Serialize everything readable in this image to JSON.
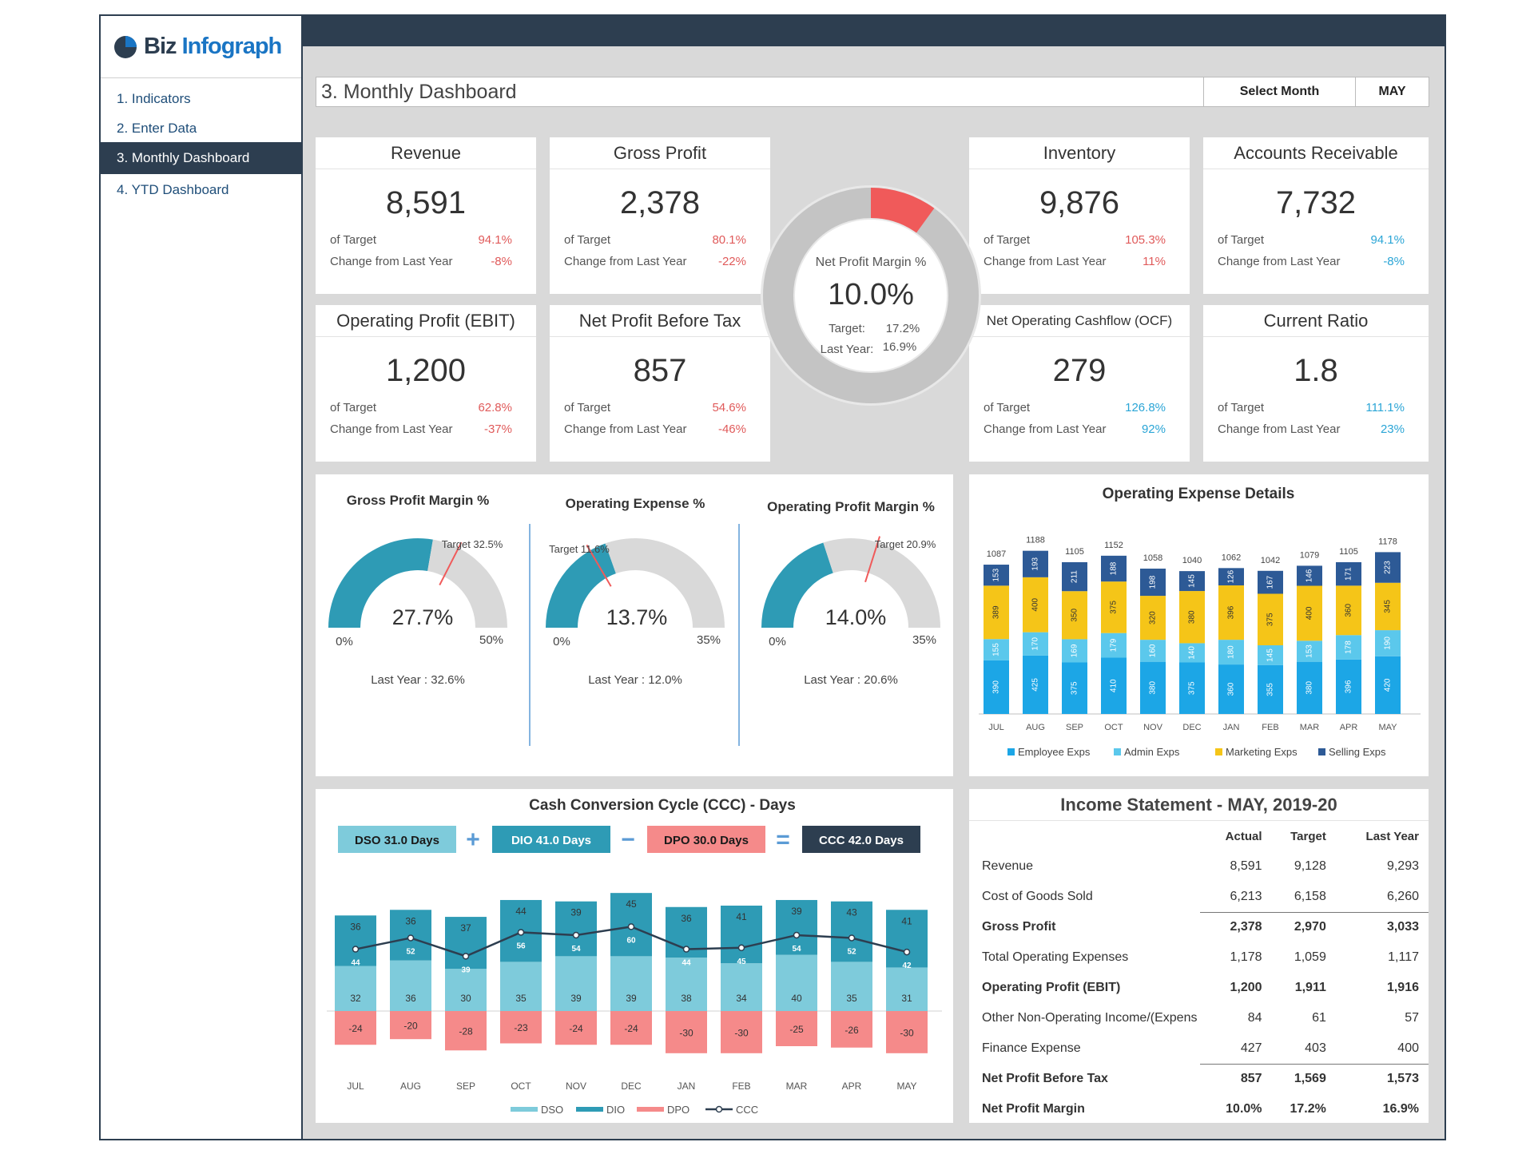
{
  "app": {
    "logo_biz": "Biz",
    "logo_info": "Infograph"
  },
  "sidebar": {
    "items": [
      {
        "label": "1. Indicators"
      },
      {
        "label": "2. Enter Data"
      },
      {
        "label": "3. Monthly Dashboard"
      },
      {
        "label": "4. YTD Dashboard"
      }
    ]
  },
  "header": {
    "title": "3. Monthly Dashboard",
    "select_label": "Select Month",
    "select_value": "MAY"
  },
  "kpis": {
    "revenue": {
      "title": "Revenue",
      "value": "8,591",
      "target_label": "of Target",
      "target": "94.1%",
      "change_label": "Change from Last Year",
      "change": "-8%"
    },
    "gross_profit": {
      "title": "Gross Profit",
      "value": "2,378",
      "target_label": "of Target",
      "target": "80.1%",
      "change_label": "Change from Last Year",
      "change": "-22%"
    },
    "inventory": {
      "title": "Inventory",
      "value": "9,876",
      "target_label": "of Target",
      "target": "105.3%",
      "change_label": "Change from Last Year",
      "change": "11%"
    },
    "ar": {
      "title": "Accounts Receivable",
      "value": "7,732",
      "target_label": "of Target",
      "target": "94.1%",
      "change_label": "Change from Last Year",
      "change": "-8%"
    },
    "ebit": {
      "title": "Operating Profit (EBIT)",
      "value": "1,200",
      "target_label": "of Target",
      "target": "62.8%",
      "change_label": "Change from Last Year",
      "change": "-37%"
    },
    "npbt": {
      "title": "Net Profit Before Tax",
      "value": "857",
      "target_label": "of Target",
      "target": "54.6%",
      "change_label": "Change from Last Year",
      "change": "-46%"
    },
    "ocf": {
      "title": "Net Operating Cashflow (OCF)",
      "value": "279",
      "target_label": "of Target",
      "target": "126.8%",
      "change_label": "Change from Last Year",
      "change": "92%"
    },
    "current_ratio": {
      "title": "Current Ratio",
      "value": "1.8",
      "target_label": "of Target",
      "target": "111.1%",
      "change_label": "Change from Last Year",
      "change": "23%"
    }
  },
  "npm_donut": {
    "label": "Net Profit Margin %",
    "value": "10.0%",
    "target_label": "Target:",
    "target": "17.2%",
    "last_year_label": "Last Year:",
    "last_year": "16.9%",
    "fraction": 0.1
  },
  "gauges": [
    {
      "title": "Gross Profit Margin %",
      "value_text": "27.7%",
      "value": 27.7,
      "max": 50,
      "max_label": "50%",
      "min_label": "0%",
      "target_text": "Target 32.5%",
      "target": 32.5,
      "last_year_text": "Last Year : 32.6%"
    },
    {
      "title": "Operating Expense %",
      "value_text": "13.7%",
      "value": 13.7,
      "max": 35,
      "max_label": "35%",
      "min_label": "0%",
      "target_text": "Target 11.6%",
      "target": 11.6,
      "last_year_text": "Last Year : 12.0%"
    },
    {
      "title": "Operating Profit Margin %",
      "value_text": "14.0%",
      "value": 14.0,
      "max": 35,
      "max_label": "35%",
      "min_label": "0%",
      "target_text": "Target 20.9%",
      "target": 20.9,
      "last_year_text": "Last Year : 20.6%"
    }
  ],
  "colors": {
    "teal": "#2e9bb5",
    "grey": "#d9d9d9",
    "red": "#f05a5a",
    "navy": "#2d3e50",
    "employee": "#1ca6e6",
    "admin": "#5bc8ec",
    "marketing": "#f5c518",
    "selling": "#2d5a96",
    "dso": "#7ecbdb",
    "dio": "#2e9bb5",
    "dpo": "#f58a8a"
  },
  "chart_data": [
    {
      "type": "bar",
      "title": "Operating Expense Details",
      "categories": [
        "JUL",
        "AUG",
        "SEP",
        "OCT",
        "NOV",
        "DEC",
        "JAN",
        "FEB",
        "MAR",
        "APR",
        "MAY"
      ],
      "series": [
        {
          "name": "Employee Exps",
          "values": [
            390,
            425,
            375,
            410,
            380,
            375,
            360,
            355,
            380,
            396,
            420
          ]
        },
        {
          "name": "Admin Exps",
          "values": [
            155,
            170,
            169,
            179,
            160,
            140,
            180,
            145,
            153,
            178,
            190
          ]
        },
        {
          "name": "Marketing Exps",
          "values": [
            389,
            400,
            350,
            375,
            320,
            380,
            396,
            375,
            400,
            360,
            345
          ]
        },
        {
          "name": "Selling Exps",
          "values": [
            153,
            193,
            211,
            188,
            198,
            145,
            126,
            167,
            146,
            171,
            223
          ]
        }
      ],
      "totals": [
        1087,
        1188,
        1105,
        1152,
        1058,
        1040,
        1062,
        1042,
        1079,
        1105,
        1178
      ],
      "stacked": true
    },
    {
      "type": "bar",
      "title": "Cash Conversion Cycle (CCC) - Days",
      "categories": [
        "JUL",
        "AUG",
        "SEP",
        "OCT",
        "NOV",
        "DEC",
        "JAN",
        "FEB",
        "MAR",
        "APR",
        "MAY"
      ],
      "series": [
        {
          "name": "DSO",
          "values": [
            32,
            36,
            30,
            35,
            39,
            39,
            38,
            34,
            40,
            35,
            31
          ]
        },
        {
          "name": "DIO",
          "values": [
            36,
            36,
            37,
            44,
            39,
            45,
            36,
            41,
            39,
            43,
            41
          ]
        },
        {
          "name": "DPO",
          "values": [
            -24,
            -20,
            -28,
            -23,
            -24,
            -24,
            -30,
            -30,
            -25,
            -26,
            -30
          ]
        },
        {
          "name": "CCC",
          "values": [
            44,
            52,
            39,
            56,
            54,
            60,
            44,
            45,
            54,
            52,
            42
          ]
        }
      ],
      "stacked": true,
      "boxes": [
        {
          "label": "DSO 31.0 Days"
        },
        {
          "label": "DIO 41.0 Days"
        },
        {
          "label": "DPO 30.0 Days"
        },
        {
          "label": "CCC 42.0 Days"
        }
      ],
      "operators": [
        "+",
        "−",
        "="
      ]
    }
  ],
  "income_statement": {
    "title": "Income Statement - MAY, 2019-20",
    "headers": [
      "Actual",
      "Target",
      "Last Year"
    ],
    "rows": [
      {
        "label": "Revenue",
        "values": [
          "8,591",
          "9,128",
          "9,293"
        ],
        "bold": false,
        "line": false
      },
      {
        "label": "Cost of Goods Sold",
        "values": [
          "6,213",
          "6,158",
          "6,260"
        ],
        "bold": false,
        "line": false
      },
      {
        "label": "Gross Profit",
        "values": [
          "2,378",
          "2,970",
          "3,033"
        ],
        "bold": true,
        "line": true
      },
      {
        "label": "Total Operating Expenses",
        "values": [
          "1,178",
          "1,059",
          "1,117"
        ],
        "bold": false,
        "line": false
      },
      {
        "label": "Operating Profit (EBIT)",
        "values": [
          "1,200",
          "1,911",
          "1,916"
        ],
        "bold": true,
        "line": false
      },
      {
        "label": "Other Non-Operating Income/(Expens",
        "values": [
          "84",
          "61",
          "57"
        ],
        "bold": false,
        "line": false
      },
      {
        "label": "Finance Expense",
        "values": [
          "427",
          "403",
          "400"
        ],
        "bold": false,
        "line": false
      },
      {
        "label": "Net Profit Before Tax",
        "values": [
          "857",
          "1,569",
          "1,573"
        ],
        "bold": true,
        "line": true
      },
      {
        "label": "Net Profit Margin",
        "values": [
          "10.0%",
          "17.2%",
          "16.9%"
        ],
        "bold": true,
        "line": false
      }
    ]
  }
}
